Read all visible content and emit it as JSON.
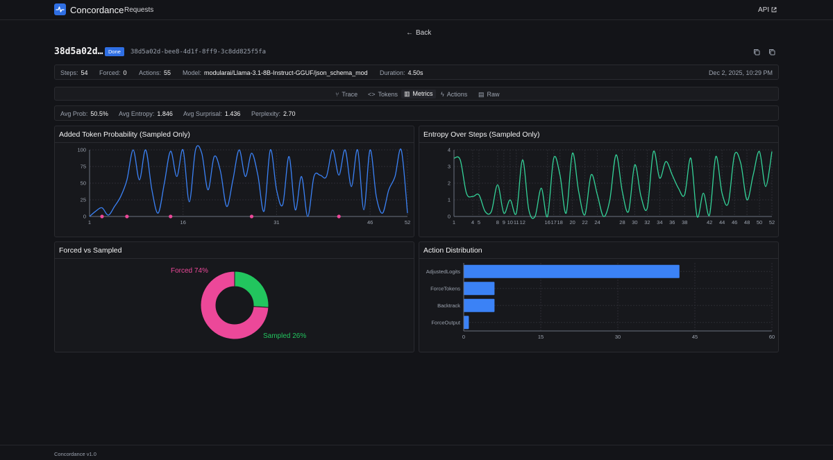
{
  "app": {
    "name": "Concordance",
    "nav_requests": "Requests",
    "api_label": "API"
  },
  "back_label": "Back",
  "request": {
    "short_id": "38d5a02d…",
    "status": "Done",
    "uuid": "38d5a02d-bee8-4d1f-8ff9-3c8dd825f5fa"
  },
  "stats": {
    "steps_label": "Steps:",
    "steps": "54",
    "forced_label": "Forced:",
    "forced": "0",
    "actions_label": "Actions:",
    "actions": "55",
    "model_label": "Model:",
    "model": "modularai/Llama-3.1-8B-Instruct-GGUF/json_schema_mod",
    "duration_label": "Duration:",
    "duration": "4.50s",
    "date": "Dec 2, 2025, 10:29 PM"
  },
  "tabs": [
    {
      "label": "Trace",
      "icon": "branch-icon",
      "active": false
    },
    {
      "label": "Tokens",
      "icon": "code-icon",
      "active": false
    },
    {
      "label": "Metrics",
      "icon": "bar-chart-icon",
      "active": true
    },
    {
      "label": "Actions",
      "icon": "bolt-icon",
      "active": false
    },
    {
      "label": "Raw",
      "icon": "file-icon",
      "active": false
    }
  ],
  "metrics": {
    "avg_prob_label": "Avg Prob:",
    "avg_prob": "50.5%",
    "avg_entropy_label": "Avg Entropy:",
    "avg_entropy": "1.846",
    "avg_surprisal_label": "Avg Surprisal:",
    "avg_surprisal": "1.436",
    "perplexity_label": "Perplexity:",
    "perplexity": "2.70"
  },
  "cards": {
    "prob_title": "Added Token Probability (Sampled Only)",
    "entropy_title": "Entropy Over Steps (Sampled Only)",
    "pie_title": "Forced vs Sampled",
    "action_title": "Action Distribution"
  },
  "footer": "Concordance v1.0",
  "colors": {
    "accent": "#2f6fe4",
    "prob_line": "#3b82f6",
    "entropy_line": "#34d399",
    "forced": "#ec4899",
    "sampled": "#22c55e",
    "bars": "#3b82f6"
  },
  "chart_data": [
    {
      "type": "line",
      "title": "Added Token Probability (Sampled Only)",
      "x": [
        1,
        2,
        3,
        4,
        5,
        6,
        7,
        8,
        9,
        10,
        11,
        12,
        13,
        14,
        15,
        16,
        17,
        18,
        19,
        20,
        21,
        22,
        23,
        24,
        25,
        26,
        27,
        28,
        29,
        30,
        31,
        32,
        33,
        34,
        35,
        36,
        37,
        38,
        39,
        40,
        41,
        42,
        43,
        44,
        45,
        46,
        47,
        48,
        49,
        50,
        51,
        52
      ],
      "y": [
        0,
        8,
        13,
        2,
        15,
        30,
        55,
        100,
        55,
        100,
        40,
        5,
        50,
        98,
        60,
        100,
        22,
        100,
        95,
        40,
        90,
        68,
        15,
        55,
        100,
        60,
        95,
        62,
        8,
        100,
        40,
        18,
        90,
        10,
        60,
        0,
        60,
        62,
        60,
        100,
        62,
        100,
        45,
        100,
        10,
        100,
        30,
        5,
        40,
        60,
        100,
        5
      ],
      "xticks": [
        1,
        16,
        31,
        46,
        52
      ],
      "ylim": [
        0,
        100
      ],
      "yticks": [
        0,
        25,
        50,
        75,
        100
      ],
      "forced_markers_x": [
        3,
        7,
        14,
        27,
        41
      ],
      "grid": true
    },
    {
      "type": "line",
      "title": "Entropy Over Steps (Sampled Only)",
      "x": [
        1,
        2,
        3,
        4,
        5,
        6,
        7,
        8,
        9,
        10,
        11,
        12,
        13,
        14,
        15,
        16,
        17,
        18,
        19,
        20,
        21,
        22,
        23,
        24,
        25,
        26,
        27,
        28,
        29,
        30,
        31,
        32,
        33,
        34,
        35,
        36,
        37,
        38,
        39,
        40,
        41,
        42,
        43,
        44,
        45,
        46,
        47,
        48,
        49,
        50,
        51,
        52
      ],
      "y": [
        3.5,
        3.4,
        1.4,
        1.2,
        1.3,
        0.3,
        0.3,
        1.9,
        0.2,
        1.0,
        0.2,
        3.4,
        0.4,
        0.0,
        1.7,
        0.0,
        3.5,
        2.5,
        0.2,
        3.8,
        1.5,
        0.1,
        2.5,
        1.3,
        0.0,
        1.0,
        3.7,
        1.5,
        0.3,
        3.1,
        1.2,
        0.5,
        3.9,
        2.3,
        3.3,
        2.5,
        1.7,
        1.3,
        3.5,
        0.0,
        1.4,
        0.1,
        3.6,
        1.4,
        0.8,
        3.7,
        3.2,
        1.0,
        2.5,
        3.9,
        1.8,
        3.9
      ],
      "xticks": [
        1,
        4,
        5,
        8,
        9,
        10,
        11,
        12,
        16,
        17,
        18,
        20,
        22,
        24,
        28,
        30,
        32,
        34,
        36,
        38,
        42,
        44,
        46,
        48,
        50,
        52
      ],
      "ylim": [
        0,
        4
      ],
      "yticks": [
        0,
        1,
        2,
        3,
        4
      ],
      "grid": true
    },
    {
      "type": "pie",
      "title": "Forced vs Sampled",
      "labels": [
        "Forced",
        "Sampled"
      ],
      "values": [
        74,
        26
      ],
      "display_labels": [
        "Forced 74%",
        "Sampled 26%"
      ],
      "donut": true
    },
    {
      "type": "bar",
      "orientation": "horizontal",
      "title": "Action Distribution",
      "categories": [
        "AdjustedLogits",
        "ForceTokens",
        "Backtrack",
        "ForceOutput"
      ],
      "values": [
        42,
        6,
        6,
        1
      ],
      "xlim": [
        0,
        60
      ],
      "xticks": [
        0,
        15,
        30,
        45,
        60
      ],
      "grid": true
    }
  ]
}
